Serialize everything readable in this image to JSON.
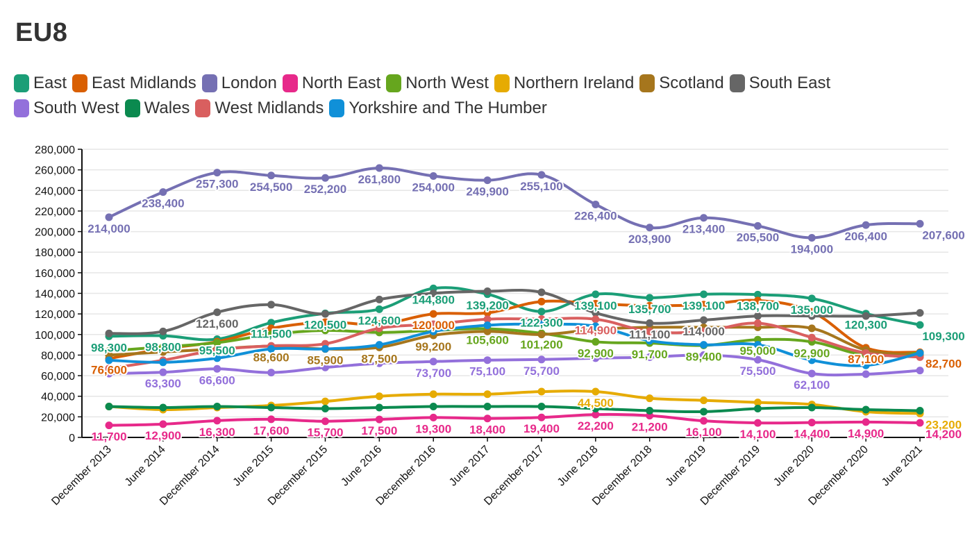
{
  "chart_data": {
    "type": "line",
    "title": "EU8",
    "xlabel": "",
    "ylabel": "",
    "ylim": [
      0,
      280000
    ],
    "y_ticks": [
      "0",
      "20,000",
      "40,000",
      "60,000",
      "80,000",
      "100,000",
      "120,000",
      "140,000",
      "160,000",
      "180,000",
      "200,000",
      "220,000",
      "240,000",
      "260,000",
      "280,000"
    ],
    "grid": true,
    "legend_position": "top",
    "categories": [
      "December 2013",
      "June 2014",
      "December 2014",
      "June 2015",
      "December 2015",
      "June 2016",
      "December 2016",
      "June 2017",
      "December 2017",
      "June 2018",
      "December 2018",
      "June 2019",
      "December 2019",
      "June 2020",
      "December 2020",
      "June 2021"
    ],
    "series": [
      {
        "name": "East",
        "color": "#1b9e77",
        "values": [
          98300,
          98800,
          95500,
          111500,
          120500,
          124600,
          144800,
          139200,
          122300,
          139100,
          135700,
          139100,
          138700,
          135000,
          120300,
          109300
        ]
      },
      {
        "name": "East Midlands",
        "color": "#d95f02",
        "values": [
          76600,
          86000,
          93000,
          106000,
          112000,
          110000,
          120000,
          121000,
          132000,
          130000,
          128000,
          129000,
          133000,
          122000,
          87100,
          82700
        ]
      },
      {
        "name": "London",
        "color": "#7570b3",
        "values": [
          214000,
          238400,
          257300,
          254500,
          252200,
          261800,
          254000,
          249900,
          255100,
          226400,
          203900,
          213400,
          205500,
          194000,
          206400,
          207600
        ]
      },
      {
        "name": "North East",
        "color": "#e7298a",
        "values": [
          11700,
          12900,
          16300,
          17600,
          15700,
          17500,
          19300,
          18400,
          19400,
          22200,
          21200,
          16100,
          14100,
          14400,
          14900,
          14200
        ]
      },
      {
        "name": "North West",
        "color": "#66a61e",
        "values": [
          84000,
          88000,
          92000,
          100000,
          104000,
          102000,
          104000,
          105600,
          101200,
          92900,
          91700,
          89400,
          95000,
          92900,
          80000,
          82000
        ]
      },
      {
        "name": "Northern Ireland",
        "color": "#e6ab02",
        "values": [
          30000,
          27000,
          29000,
          31000,
          35000,
          40000,
          42000,
          42000,
          44500,
          44500,
          38000,
          36000,
          34000,
          32000,
          25000,
          23200
        ]
      },
      {
        "name": "Scotland",
        "color": "#a6761d",
        "values": [
          80000,
          83000,
          86000,
          88600,
          85900,
          87500,
          99200,
          103000,
          100000,
          105000,
          107000,
          107000,
          107000,
          106000,
          85000,
          80000
        ]
      },
      {
        "name": "South East",
        "color": "#666666",
        "values": [
          101000,
          103000,
          121600,
          129000,
          120000,
          134000,
          140000,
          142000,
          141000,
          121000,
          111100,
          114000,
          118000,
          118000,
          118000,
          121000
        ]
      },
      {
        "name": "South West",
        "color": "#9370db",
        "values": [
          62000,
          63300,
          66600,
          63000,
          68000,
          72000,
          73700,
          75100,
          75700,
          77000,
          78000,
          80000,
          75500,
          62100,
          61500,
          65000
        ]
      },
      {
        "name": "Wales",
        "color": "#0b8a4f",
        "values": [
          30000,
          29000,
          30000,
          29000,
          28000,
          29000,
          30000,
          30000,
          30000,
          28000,
          26000,
          25000,
          28000,
          29000,
          27000,
          26000
        ]
      },
      {
        "name": "West Midlands",
        "color": "#d95f5f",
        "values": [
          67000,
          75000,
          85000,
          89000,
          91000,
          106000,
          110000,
          114900,
          115000,
          114900,
          103000,
          103000,
          111000,
          97000,
          82000,
          78000
        ]
      },
      {
        "name": "Yorkshire and The Humber",
        "color": "#1090d8",
        "values": [
          75000,
          73000,
          77000,
          86000,
          86000,
          90000,
          103000,
          109000,
          110000,
          108000,
          94000,
          90000,
          90000,
          75000,
          70000,
          82000
        ]
      }
    ],
    "data_labels": [
      {
        "series": "East",
        "text": "98,300",
        "x": "December 2013",
        "y": 98300
      },
      {
        "series": "East",
        "text": "98,800",
        "x": "June 2014",
        "y": 98800
      },
      {
        "series": "East",
        "text": "95,500",
        "x": "December 2014",
        "y": 95500
      },
      {
        "series": "East",
        "text": "111,500",
        "x": "June 2015",
        "y": 111500
      },
      {
        "series": "East",
        "text": "120,500",
        "x": "December 2015",
        "y": 120500
      },
      {
        "series": "East",
        "text": "124,600",
        "x": "June 2016",
        "y": 124600
      },
      {
        "series": "East",
        "text": "144,800",
        "x": "December 2016",
        "y": 144800
      },
      {
        "series": "East",
        "text": "139,200",
        "x": "June 2017",
        "y": 139200
      },
      {
        "series": "East",
        "text": "122,300",
        "x": "December 2017",
        "y": 122300
      },
      {
        "series": "East",
        "text": "139,100",
        "x": "June 2018",
        "y": 139100
      },
      {
        "series": "East",
        "text": "135,700",
        "x": "December 2018",
        "y": 135700
      },
      {
        "series": "East",
        "text": "139,100",
        "x": "June 2019",
        "y": 139100
      },
      {
        "series": "East",
        "text": "138,700",
        "x": "December 2019",
        "y": 138700
      },
      {
        "series": "East",
        "text": "135,000",
        "x": "June 2020",
        "y": 135000
      },
      {
        "series": "East",
        "text": "120,300",
        "x": "December 2020",
        "y": 120300
      },
      {
        "series": "East",
        "text": "109,300",
        "x": "June 2021",
        "y": 109300
      },
      {
        "series": "East Midlands",
        "text": "76,600",
        "x": "December 2013",
        "y": 76600
      },
      {
        "series": "East Midlands",
        "text": "120,000",
        "x": "December 2016",
        "y": 120000
      },
      {
        "series": "East Midlands",
        "text": "87,100",
        "x": "December 2020",
        "y": 87100
      },
      {
        "series": "East Midlands",
        "text": "82,700",
        "x": "June 2021",
        "y": 82700
      },
      {
        "series": "London",
        "text": "214,000",
        "x": "December 2013",
        "y": 214000
      },
      {
        "series": "London",
        "text": "238,400",
        "x": "June 2014",
        "y": 238400
      },
      {
        "series": "London",
        "text": "257,300",
        "x": "December 2014",
        "y": 257300
      },
      {
        "series": "London",
        "text": "254,500",
        "x": "June 2015",
        "y": 254500
      },
      {
        "series": "London",
        "text": "252,200",
        "x": "December 2015",
        "y": 252200
      },
      {
        "series": "London",
        "text": "261,800",
        "x": "June 2016",
        "y": 261800
      },
      {
        "series": "London",
        "text": "254,000",
        "x": "December 2016",
        "y": 254000
      },
      {
        "series": "London",
        "text": "249,900",
        "x": "June 2017",
        "y": 249900
      },
      {
        "series": "London",
        "text": "255,100",
        "x": "December 2017",
        "y": 255100
      },
      {
        "series": "London",
        "text": "226,400",
        "x": "June 2018",
        "y": 226400
      },
      {
        "series": "London",
        "text": "203,900",
        "x": "December 2018",
        "y": 203900
      },
      {
        "series": "London",
        "text": "213,400",
        "x": "June 2019",
        "y": 213400
      },
      {
        "series": "London",
        "text": "205,500",
        "x": "December 2019",
        "y": 205500
      },
      {
        "series": "London",
        "text": "194,000",
        "x": "June 2020",
        "y": 194000
      },
      {
        "series": "London",
        "text": "206,400",
        "x": "December 2020",
        "y": 206400
      },
      {
        "series": "London",
        "text": "207,600",
        "x": "June 2021",
        "y": 207600
      },
      {
        "series": "North East",
        "text": "11,700",
        "x": "December 2013",
        "y": 11700
      },
      {
        "series": "North East",
        "text": "12,900",
        "x": "June 2014",
        "y": 12900
      },
      {
        "series": "North East",
        "text": "16,300",
        "x": "December 2014",
        "y": 16300
      },
      {
        "series": "North East",
        "text": "17,600",
        "x": "June 2015",
        "y": 17600
      },
      {
        "series": "North East",
        "text": "15,700",
        "x": "December 2015",
        "y": 15700
      },
      {
        "series": "North East",
        "text": "17,500",
        "x": "June 2016",
        "y": 17500
      },
      {
        "series": "North East",
        "text": "19,300",
        "x": "December 2016",
        "y": 19300
      },
      {
        "series": "North East",
        "text": "18,400",
        "x": "June 2017",
        "y": 18400
      },
      {
        "series": "North East",
        "text": "19,400",
        "x": "December 2017",
        "y": 19400
      },
      {
        "series": "North East",
        "text": "22,200",
        "x": "June 2018",
        "y": 22200
      },
      {
        "series": "North East",
        "text": "21,200",
        "x": "December 2018",
        "y": 21200
      },
      {
        "series": "North East",
        "text": "16,100",
        "x": "June 2019",
        "y": 16100
      },
      {
        "series": "North East",
        "text": "14,100",
        "x": "December 2019",
        "y": 14100
      },
      {
        "series": "North East",
        "text": "14,400",
        "x": "June 2020",
        "y": 14400
      },
      {
        "series": "North East",
        "text": "14,900",
        "x": "December 2020",
        "y": 14900
      },
      {
        "series": "North East",
        "text": "14,200",
        "x": "June 2021",
        "y": 14200
      },
      {
        "series": "North West",
        "text": "105,600",
        "x": "June 2017",
        "y": 105600
      },
      {
        "series": "North West",
        "text": "101,200",
        "x": "December 2017",
        "y": 101200
      },
      {
        "series": "North West",
        "text": "92,900",
        "x": "June 2018",
        "y": 92900
      },
      {
        "series": "North West",
        "text": "91,700",
        "x": "December 2018",
        "y": 91700
      },
      {
        "series": "North West",
        "text": "89,400",
        "x": "June 2019",
        "y": 89400
      },
      {
        "series": "North West",
        "text": "95,000",
        "x": "December 2019",
        "y": 95000
      },
      {
        "series": "North West",
        "text": "92,900",
        "x": "June 2020",
        "y": 92900
      },
      {
        "series": "Northern Ireland",
        "text": "44,500",
        "x": "June 2018",
        "y": 44500
      },
      {
        "series": "Northern Ireland",
        "text": "23,200",
        "x": "June 2021",
        "y": 23200
      },
      {
        "series": "Scotland",
        "text": "88,600",
        "x": "June 2015",
        "y": 88600
      },
      {
        "series": "Scotland",
        "text": "85,900",
        "x": "December 2015",
        "y": 85900
      },
      {
        "series": "Scotland",
        "text": "87,500",
        "x": "June 2016",
        "y": 87500
      },
      {
        "series": "Scotland",
        "text": "99,200",
        "x": "December 2016",
        "y": 99200
      },
      {
        "series": "South East",
        "text": "121,600",
        "x": "December 2014",
        "y": 121600
      },
      {
        "series": "South East",
        "text": "111,100",
        "x": "December 2018",
        "y": 111100
      },
      {
        "series": "South East",
        "text": "114,000",
        "x": "June 2019",
        "y": 114000
      },
      {
        "series": "South West",
        "text": "63,300",
        "x": "June 2014",
        "y": 63300
      },
      {
        "series": "South West",
        "text": "66,600",
        "x": "December 2014",
        "y": 66600
      },
      {
        "series": "South West",
        "text": "73,700",
        "x": "December 2016",
        "y": 73700
      },
      {
        "series": "South West",
        "text": "75,100",
        "x": "June 2017",
        "y": 75100
      },
      {
        "series": "South West",
        "text": "75,700",
        "x": "December 2017",
        "y": 75700
      },
      {
        "series": "South West",
        "text": "75,500",
        "x": "December 2019",
        "y": 75500
      },
      {
        "series": "South West",
        "text": "62,100",
        "x": "June 2020",
        "y": 62100
      },
      {
        "series": "West Midlands",
        "text": "114,900",
        "x": "June 2018",
        "y": 114900
      }
    ]
  }
}
